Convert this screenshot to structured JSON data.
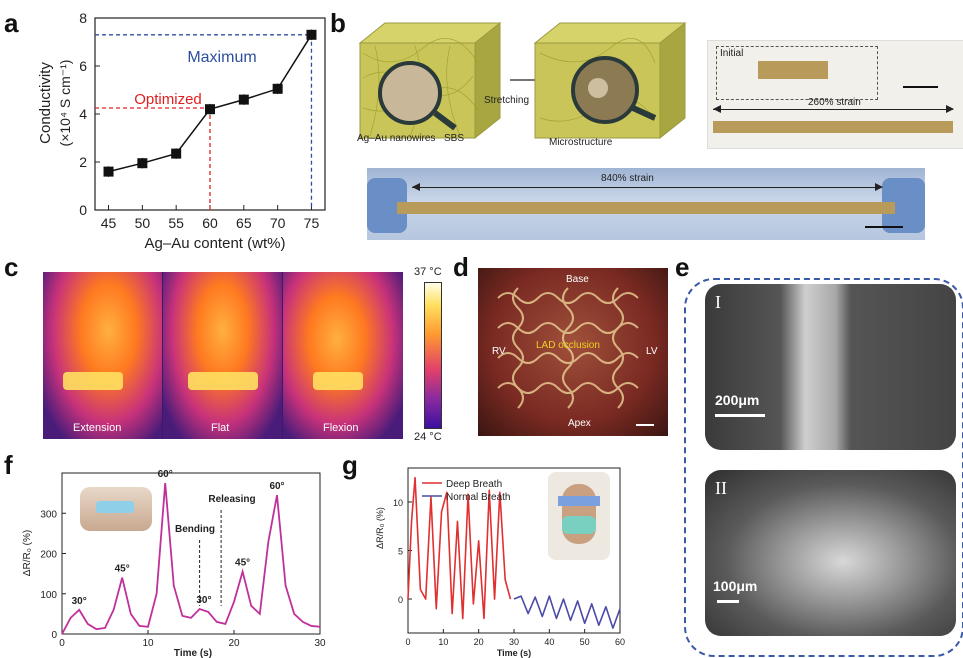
{
  "letters": {
    "a": "a",
    "b": "b",
    "c": "c",
    "d": "d",
    "e": "e",
    "f": "f",
    "g": "g"
  },
  "colors": {
    "line_a": "#111111",
    "max": "#2e4fa0",
    "opt": "#e02020",
    "pink": "#c0309a",
    "deep": "#e03030",
    "normal": "#4a4aa8",
    "dashed_box": "#3a5aa8"
  },
  "panel_a": {
    "ylabel_1": "Conductivity",
    "ylabel_2": "(×10⁴ S cm⁻¹)",
    "xlabel": "Ag–Au content (wt%)",
    "max_label": "Maximum",
    "opt_label": "Optimized",
    "yticks": [
      "0",
      "2",
      "4",
      "6",
      "8"
    ],
    "xticks": [
      "45",
      "50",
      "55",
      "60",
      "65",
      "70",
      "75"
    ]
  },
  "chart_data": [
    {
      "type": "line",
      "title": "",
      "xlabel": "Ag–Au content (wt%)",
      "ylabel": "Conductivity (×10⁴ S cm⁻¹)",
      "x": [
        45,
        50,
        55,
        60,
        65,
        70,
        75
      ],
      "values": [
        1.6,
        1.95,
        2.35,
        4.2,
        4.6,
        5.05,
        7.3
      ],
      "ylim": [
        0,
        8
      ],
      "xlim": [
        43,
        77
      ],
      "annotations": [
        {
          "text": "Maximum",
          "y": 7.3,
          "x": 75
        },
        {
          "text": "Optimized",
          "y": 4.25,
          "x": 60
        }
      ]
    },
    {
      "type": "line",
      "title": "",
      "xlabel": "Time (s)",
      "ylabel": "ΔR/R₀ (%)",
      "x": [
        0,
        1,
        2,
        3,
        4,
        5,
        6,
        7,
        8,
        9,
        10,
        11,
        12,
        13,
        14,
        15,
        16,
        17,
        18,
        19,
        20,
        21,
        22,
        23,
        24,
        25,
        26,
        27,
        28,
        29,
        30
      ],
      "values": [
        0,
        40,
        60,
        25,
        12,
        15,
        60,
        140,
        50,
        20,
        18,
        100,
        375,
        120,
        45,
        40,
        62,
        55,
        30,
        25,
        80,
        155,
        70,
        50,
        230,
        345,
        120,
        50,
        30,
        20,
        18
      ],
      "ylim": [
        0,
        400
      ],
      "xlim": [
        0,
        30
      ],
      "annotations": [
        {
          "text": "30°",
          "x": 2,
          "y": 60
        },
        {
          "text": "45°",
          "x": 7,
          "y": 140
        },
        {
          "text": "60°",
          "x": 12,
          "y": 375
        },
        {
          "text": "30°",
          "x": 16.5,
          "y": 62
        },
        {
          "text": "45°",
          "x": 21,
          "y": 155
        },
        {
          "text": "60°",
          "x": 25,
          "y": 345
        },
        {
          "text": "Bending",
          "x": 16
        },
        {
          "text": "Releasing",
          "x": 18.5
        }
      ]
    },
    {
      "type": "line",
      "title": "",
      "xlabel": "Time (s)",
      "ylabel": "ΔR/R₀ (%)",
      "series": [
        {
          "name": "Deep Breath",
          "x": [
            0,
            1,
            2,
            3.5,
            5,
            6.5,
            8,
            9.5,
            11,
            12.5,
            14,
            15.5,
            17,
            18.5,
            20,
            21.5,
            23,
            24.5,
            26,
            27.5,
            29
          ],
          "values": [
            0,
            8,
            12.5,
            1,
            0,
            10.5,
            -1,
            9,
            11,
            -1.5,
            8,
            -2,
            10.8,
            -0.5,
            6,
            -2,
            11.2,
            0,
            11,
            2,
            0
          ]
        },
        {
          "name": "Normal Breath",
          "x": [
            30,
            32,
            34,
            36,
            38,
            40,
            42,
            44,
            46,
            48,
            50,
            52,
            54,
            56,
            58,
            60
          ],
          "values": [
            0,
            0.3,
            -1.5,
            0.2,
            -1.8,
            0.3,
            -2,
            0,
            -2.2,
            -0.2,
            -2.5,
            -0.5,
            -2.7,
            -0.8,
            -3,
            -1
          ]
        }
      ],
      "ylim": [
        -3.5,
        13.5
      ],
      "xlim": [
        0,
        60
      ]
    }
  ],
  "panel_b": {
    "label_nano": "Ag–Au nanowires",
    "label_sbs": "SBS",
    "label_stretch": "Stretching",
    "label_micro": "Microstructure",
    "label_initial": "Initial",
    "label_260": "260% strain",
    "label_840": "840% strain"
  },
  "panel_c": {
    "labels": [
      "Extension",
      "Flat",
      "Flexion"
    ],
    "temp_max": "37 °C",
    "temp_min": "24 °C"
  },
  "panel_d": {
    "base": "Base",
    "rv": "RV",
    "lv": "LV",
    "lad": "LAD occlusion",
    "apex": "Apex"
  },
  "panel_e": {
    "roman_1": "I",
    "roman_2": "II",
    "scale_1": "200μm",
    "scale_2": "100μm"
  },
  "panel_f": {
    "ylabel": "ΔR/R₀ (%)",
    "xlabel": "Time (s)",
    "bending": "Bending",
    "releasing": "Releasing",
    "yticks": [
      "0",
      "100",
      "200",
      "300"
    ],
    "xticks": [
      "0",
      "10",
      "20",
      "30"
    ]
  },
  "panel_g": {
    "ylabel": "ΔR/R₀ (%)",
    "xlabel": "Time (s)",
    "legend_deep": "Deep Breath",
    "legend_normal": "Normal Breath",
    "yticks": [
      "0",
      "5",
      "10"
    ],
    "xticks": [
      "0",
      "10",
      "20",
      "30",
      "40",
      "50",
      "60"
    ]
  }
}
